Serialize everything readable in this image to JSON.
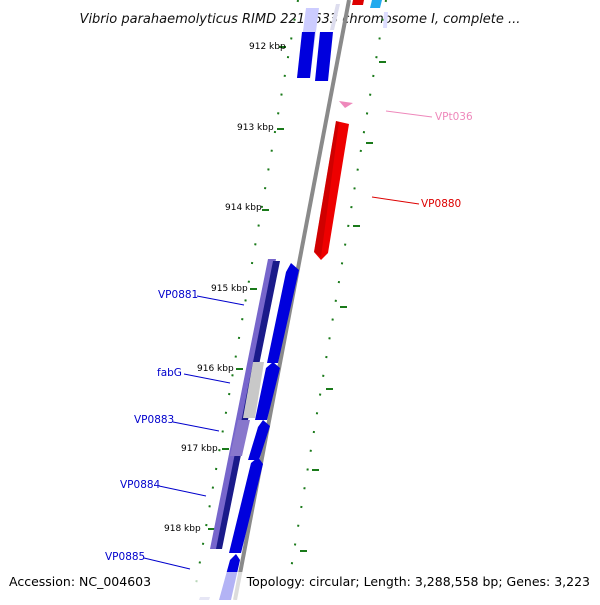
{
  "title": "Vibrio parahaemolyticus RIMD 2210633 chromosome I, complete ...",
  "footer": {
    "accession": "Accession: NC_004603",
    "summary": "Topology: circular; Length: 3,288,558 bp; Genes: 3,223"
  },
  "ticks": [
    {
      "label": "912 kbp",
      "kbp": 912
    },
    {
      "label": "913 kbp",
      "kbp": 913
    },
    {
      "label": "914 kbp",
      "kbp": 914
    },
    {
      "label": "915 kbp",
      "kbp": 915
    },
    {
      "label": "916 kbp",
      "kbp": 916
    },
    {
      "label": "917 kbp",
      "kbp": 917
    },
    {
      "label": "918 kbp",
      "kbp": 918
    }
  ],
  "genes": [
    {
      "label": "VP0880",
      "strand": "reverse",
      "color": "#dd0000"
    },
    {
      "label": "VPt036",
      "strand": "reverse",
      "color": "#ee88bb"
    },
    {
      "label": "VP0881",
      "strand": "forward",
      "color": "#0000cc"
    },
    {
      "label": "fabG",
      "strand": "forward",
      "color": "#0000cc"
    },
    {
      "label": "VP0883",
      "strand": "forward",
      "color": "#0000cc"
    },
    {
      "label": "VP0884",
      "strand": "forward",
      "color": "#0000cc"
    },
    {
      "label": "VP0885",
      "strand": "forward",
      "color": "#0000cc"
    }
  ],
  "colors": {
    "backbone": "#888888",
    "tick_marks": "#1a7a1a",
    "forward_cds": "#0000dd",
    "reverse_cds": "#ee0000",
    "cog_band": "#7766cc"
  }
}
